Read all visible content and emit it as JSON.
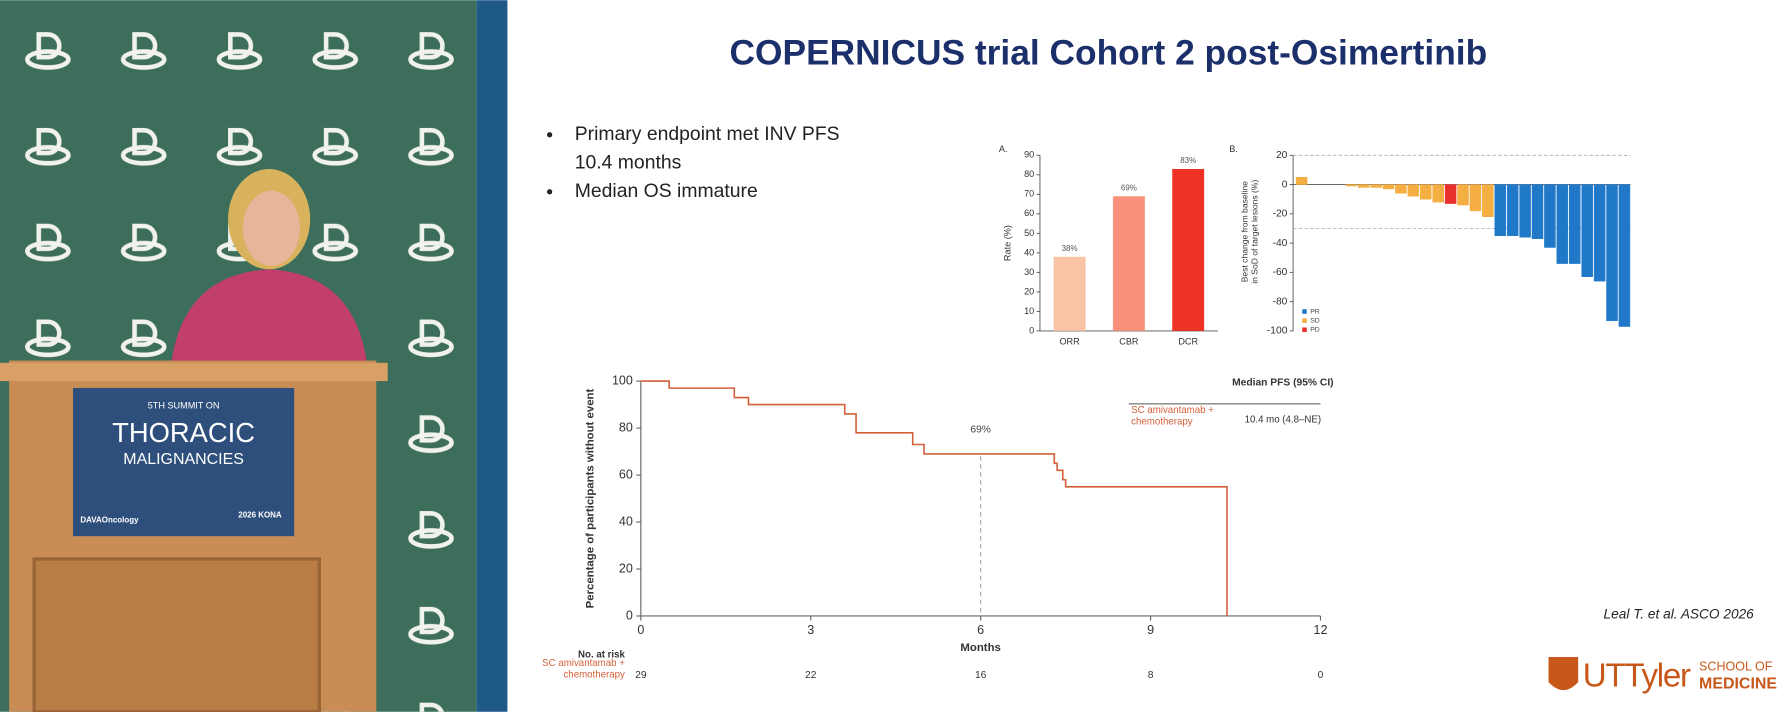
{
  "slide": {
    "title": "COPERNICUS trial Cohort 2 post-Osimertinib",
    "bullets": [
      [
        "Primary endpoint met INV PFS",
        "10.4 months"
      ],
      [
        "Median OS immature"
      ]
    ],
    "citation": "Leal T. et al. ASCO 2026",
    "logo": {
      "name": "UTTyler",
      "school_lines": [
        "SCHOOL OF",
        "MEDICINE"
      ]
    }
  },
  "podium": {
    "lines": [
      "5TH SUMMIT ON",
      "THORACIC",
      "MALIGNANCIES"
    ],
    "left_logo": "DAVAOncology",
    "right_logo": "2026 KONA"
  },
  "chart_data": [
    {
      "type": "bar",
      "panel_label": "A.",
      "ylabel": "Rate (%)",
      "categories": [
        "ORR",
        "CBR",
        "DCR"
      ],
      "values": [
        38,
        69,
        83
      ],
      "value_labels": [
        "38%",
        "69%",
        "83%"
      ],
      "colors": [
        "#f9c3a6",
        "#f7917a",
        "#ee3224"
      ],
      "ylim": [
        0,
        90
      ],
      "yticks": [
        0,
        10,
        20,
        30,
        40,
        50,
        60,
        70,
        80,
        90
      ]
    },
    {
      "type": "waterfall",
      "panel_label": "B.",
      "ylabel_lines": [
        "Best change from baseline",
        "in SoD of target lesions (%)"
      ],
      "values": [
        5,
        0,
        0,
        0,
        -1,
        -2,
        -2,
        -3,
        -6,
        -8,
        -10,
        -12,
        -13,
        -14,
        -18,
        -22,
        -35,
        -35,
        -36,
        -37,
        -43,
        -54,
        -54,
        -63,
        -66,
        -93,
        -97
      ],
      "colors": [
        "#f4ae42",
        "#f4ae42",
        "#f4ae42",
        "#f4ae42",
        "#f4ae42",
        "#f4ae42",
        "#f4ae42",
        "#f4ae42",
        "#f4ae42",
        "#f4ae42",
        "#f4ae42",
        "#f4ae42",
        "#e8312a",
        "#f4ae42",
        "#f4ae42",
        "#f4ae42",
        "#1f78c8",
        "#1f78c8",
        "#1f78c8",
        "#1f78c8",
        "#1f78c8",
        "#1f78c8",
        "#1f78c8",
        "#1f78c8",
        "#1f78c8",
        "#1f78c8",
        "#1f78c8"
      ],
      "ylim": [
        -100,
        20
      ],
      "yticks": [
        20,
        0,
        -20,
        -40,
        -60,
        -80,
        -100
      ],
      "reference_lines": [
        20,
        -30
      ],
      "legend": [
        {
          "name": "PR",
          "color": "#1f78c8"
        },
        {
          "name": "SD",
          "color": "#f4ae42"
        },
        {
          "name": "PD",
          "color": "#e8312a"
        }
      ]
    },
    {
      "type": "step",
      "xlabel": "Months",
      "ylabel": "Percentage of participants without event",
      "x": [
        0,
        0.5,
        1.65,
        1.9,
        3.6,
        3.8,
        4.8,
        5.0,
        7.3,
        7.35,
        7.45,
        7.5,
        10.35
      ],
      "series": [
        {
          "name": "SC amivantamab + chemotherapy",
          "color": "#d4603a",
          "values": [
            100,
            97,
            93,
            90,
            86,
            78,
            73,
            69,
            65,
            62,
            58,
            55,
            0
          ]
        }
      ],
      "xlim": [
        0,
        12
      ],
      "xticks": [
        0,
        3,
        6,
        9,
        12
      ],
      "ylim": [
        0,
        100
      ],
      "yticks": [
        0,
        20,
        40,
        60,
        80,
        100
      ],
      "annotations": [
        {
          "text": "69%",
          "x": 6,
          "y": 69
        }
      ],
      "legend_header": "Median PFS (95% CI)",
      "legend_value": "10.4 mo (4.8–NE)",
      "risk_table": {
        "title": "No. at risk",
        "values": [
          29,
          22,
          16,
          8,
          0
        ]
      }
    }
  ]
}
